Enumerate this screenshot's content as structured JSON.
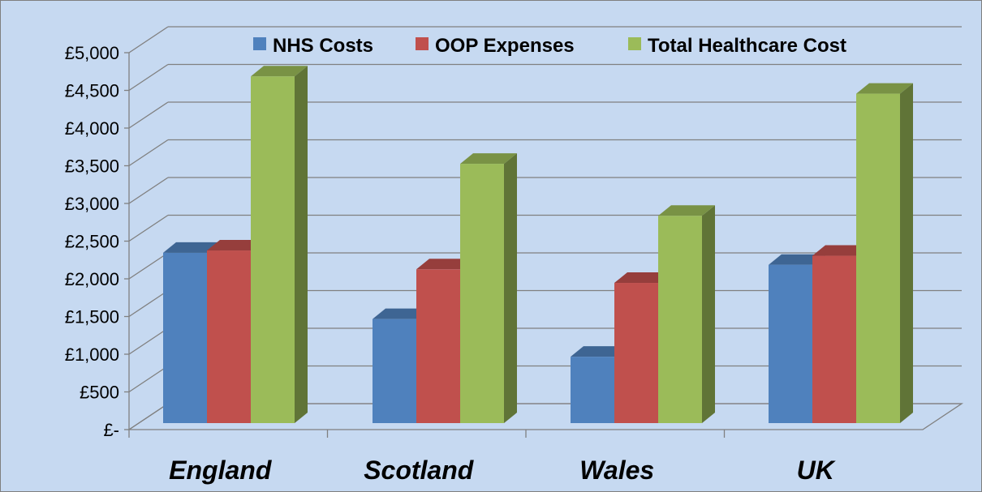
{
  "chart_data": {
    "type": "bar",
    "style": "3d-clustered-column",
    "categories": [
      "England",
      "Scotland",
      "Wales",
      "UK"
    ],
    "series": [
      {
        "name": "NHS Costs",
        "color": "#4f81bd",
        "values": [
          2260,
          1380,
          880,
          2100
        ]
      },
      {
        "name": "OOP Expenses",
        "color": "#c0504d",
        "values": [
          2290,
          2040,
          1860,
          2220
        ]
      },
      {
        "name": "Total Healthcare Cost",
        "color": "#9bbb59",
        "values": [
          4600,
          3440,
          2750,
          4370
        ]
      }
    ],
    "y_ticks": [
      "£-",
      "£500",
      "£1,000",
      "£1,500",
      "£2,000",
      "£2,500",
      "£3,000",
      "£3,500",
      "£4,000",
      "£4,500",
      "£5,000"
    ],
    "ylim": [
      0,
      5000
    ],
    "grid": true,
    "legend_position": "top",
    "background_color": "#c6d9f1",
    "gridline_color": "#808080"
  }
}
